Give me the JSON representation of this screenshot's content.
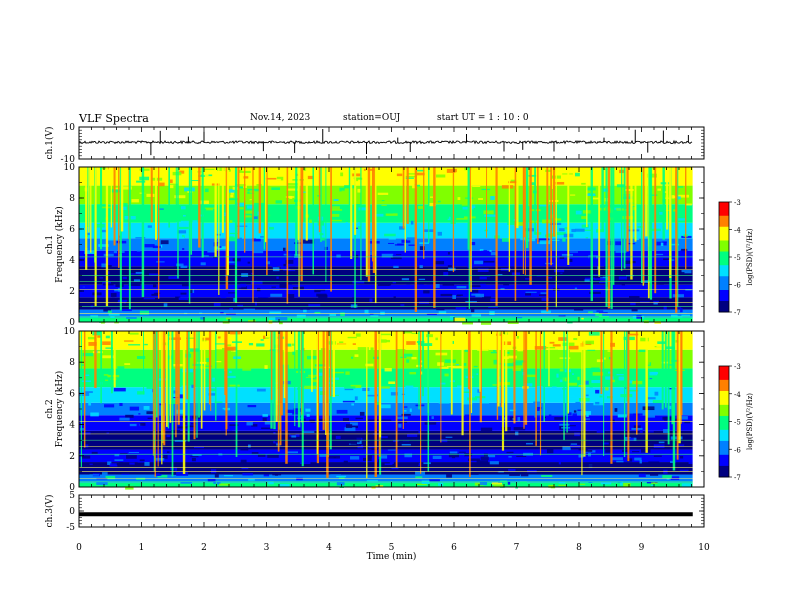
{
  "header": {
    "title": "VLF Spectra",
    "date": "Nov.14, 2023",
    "station": "station=OUJ",
    "start": "start  UT =   1 : 10 : 0"
  },
  "chart_data": [
    {
      "type": "line",
      "panel": "ch1-waveform",
      "ylabel": "ch.1(V)",
      "ylim": [
        -10,
        10
      ],
      "yticks": [
        {
          "v": 10,
          "label": "10"
        },
        {
          "v": -10,
          "label": "-10"
        }
      ],
      "xlim": [
        0,
        10
      ],
      "series": [
        {
          "baseline": 0.5,
          "noise_amplitude": 1.2,
          "spikes_at_min": [
            1.15,
            1.3,
            1.75,
            2.0,
            2.95,
            3.45,
            3.9,
            4.6,
            5.1,
            5.3,
            6.2,
            6.8,
            7.1,
            7.6,
            8.4,
            8.9,
            9.1,
            9.35,
            9.75
          ]
        }
      ],
      "x_end": 9.82
    },
    {
      "type": "heatmap",
      "panel": "ch1-spectrogram",
      "ylabel_lines": [
        "ch.1",
        "Frequency  (kHz)"
      ],
      "xlim": [
        0,
        10
      ],
      "ylim": [
        0,
        10
      ],
      "yticks": [
        {
          "v": 0,
          "label": "0"
        },
        {
          "v": 2,
          "label": "2"
        },
        {
          "v": 4,
          "label": "4"
        },
        {
          "v": 6,
          "label": "6"
        },
        {
          "v": 8,
          "label": "8"
        },
        {
          "v": 10,
          "label": "10"
        }
      ],
      "x_end": 9.82,
      "colorbar": {
        "label": "log(PSD)(V²/Hz)",
        "range": [
          -7,
          -3
        ],
        "ticks": [
          {
            "v": -3,
            "label": "-3"
          },
          {
            "v": -4,
            "label": "-4"
          },
          {
            "v": -5,
            "label": "-5"
          },
          {
            "v": -6,
            "label": "-6"
          },
          {
            "v": -7,
            "label": "-7"
          }
        ]
      }
    },
    {
      "type": "heatmap",
      "panel": "ch2-spectrogram",
      "ylabel_lines": [
        "ch.2",
        "Frequency  (kHz)"
      ],
      "xlim": [
        0,
        10
      ],
      "ylim": [
        0,
        10
      ],
      "yticks": [
        {
          "v": 0,
          "label": "0"
        },
        {
          "v": 2,
          "label": "2"
        },
        {
          "v": 4,
          "label": "4"
        },
        {
          "v": 6,
          "label": "6"
        },
        {
          "v": 8,
          "label": "8"
        },
        {
          "v": 10,
          "label": "10"
        }
      ],
      "x_end": 9.82,
      "colorbar": {
        "label": "log(PSD)(V²/Hz)",
        "range": [
          -7,
          -3
        ],
        "ticks": [
          {
            "v": -3,
            "label": "-3"
          },
          {
            "v": -4,
            "label": "-4"
          },
          {
            "v": -5,
            "label": "-5"
          },
          {
            "v": -6,
            "label": "-6"
          },
          {
            "v": -7,
            "label": "-7"
          }
        ]
      }
    },
    {
      "type": "line",
      "panel": "ch3-waveform",
      "ylabel": "ch.3(V)",
      "ylim": [
        -5,
        5
      ],
      "yticks": [
        {
          "v": 5,
          "label": "5"
        },
        {
          "v": 0,
          "label": "0"
        },
        {
          "v": -5,
          "label": "-5"
        }
      ],
      "xlim": [
        0,
        10
      ],
      "series": [
        {
          "baseline": -1,
          "noise_amplitude": 0
        }
      ],
      "x_end": 9.82,
      "xlabel": "Time  (min)",
      "xticks": [
        {
          "v": 0,
          "label": "0"
        },
        {
          "v": 1,
          "label": "1"
        },
        {
          "v": 2,
          "label": "2"
        },
        {
          "v": 3,
          "label": "3"
        },
        {
          "v": 4,
          "label": "4"
        },
        {
          "v": 5,
          "label": "5"
        },
        {
          "v": 6,
          "label": "6"
        },
        {
          "v": 7,
          "label": "7"
        },
        {
          "v": 8,
          "label": "8"
        },
        {
          "v": 9,
          "label": "9"
        },
        {
          "v": 10,
          "label": "10"
        }
      ]
    }
  ],
  "colors": {
    "colormap": [
      "#000080",
      "#0000ff",
      "#0080ff",
      "#00e0ff",
      "#00ff80",
      "#80ff00",
      "#ffff00",
      "#ff8000",
      "#ff0000",
      "#ffffff"
    ]
  }
}
